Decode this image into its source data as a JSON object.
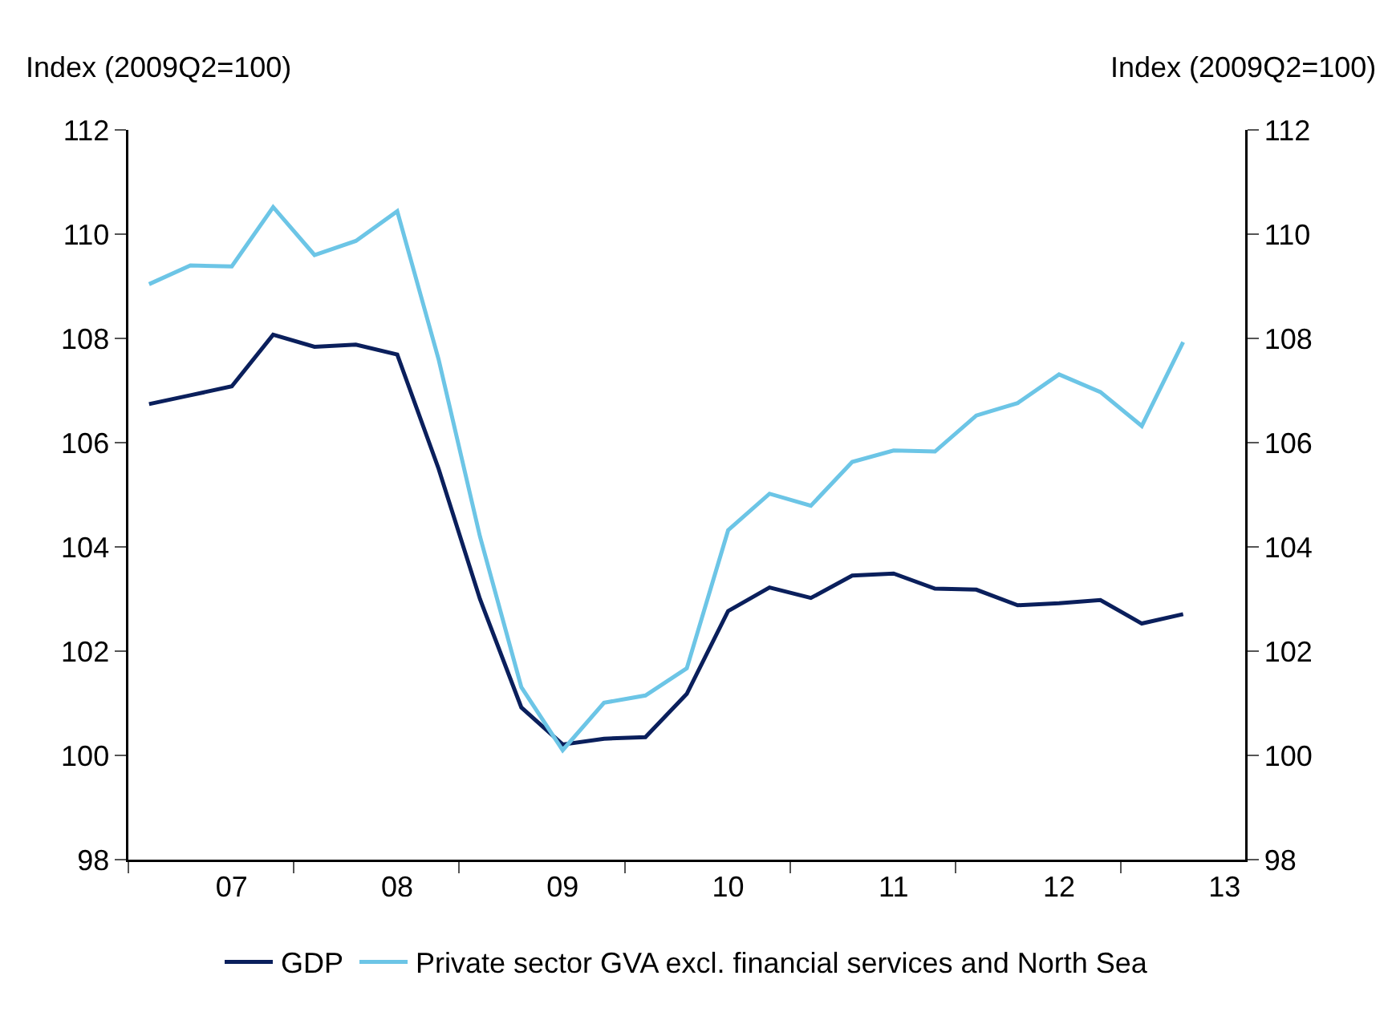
{
  "chart_data": {
    "type": "line",
    "ylabel": "Index (2009Q2=100)",
    "y2label": "Index (2009Q2=100)",
    "x": [
      2006.5,
      2006.75,
      2007,
      2007.25,
      2007.5,
      2007.75,
      2008,
      2008.25,
      2008.5,
      2008.75,
      2009,
      2009.25,
      2009.5,
      2009.75,
      2010,
      2010.25,
      2010.5,
      2010.75,
      2011,
      2011.25,
      2011.5,
      2011.75,
      2012,
      2012.25,
      2012.5,
      2012.75
    ],
    "series": [
      {
        "name": "GDP",
        "color": "#0a1f5c",
        "values": [
          106.74,
          106.91,
          107.08,
          108.07,
          107.84,
          107.88,
          107.69,
          105.5,
          103.0,
          100.92,
          100.21,
          100.32,
          100.35,
          101.18,
          102.77,
          103.22,
          103.02,
          103.45,
          103.49,
          103.2,
          103.18,
          102.88,
          102.92,
          102.98,
          102.53,
          102.71
        ]
      },
      {
        "name": "Private sector GVA excl. financial services and North Sea",
        "color": "#6cc5e6",
        "values": [
          109.04,
          109.4,
          109.38,
          110.52,
          109.6,
          109.87,
          110.44,
          107.6,
          104.2,
          101.31,
          100.1,
          101.01,
          101.15,
          101.67,
          104.32,
          105.02,
          104.79,
          105.63,
          105.85,
          105.83,
          106.52,
          106.76,
          107.31,
          106.97,
          106.32,
          107.93
        ]
      }
    ],
    "xlim": [
      2006.375,
      2013.125
    ],
    "xticks": [
      {
        "value": 2006.375,
        "label": null
      },
      {
        "value": 2007.375,
        "label": null
      },
      {
        "value": 2008.375,
        "label": null
      },
      {
        "value": 2009.375,
        "label": null
      },
      {
        "value": 2010.375,
        "label": null
      },
      {
        "value": 2011.375,
        "label": null
      },
      {
        "value": 2012.375,
        "label": null
      },
      {
        "value": 2007,
        "label": "07"
      },
      {
        "value": 2008,
        "label": "08"
      },
      {
        "value": 2009,
        "label": "09"
      },
      {
        "value": 2010,
        "label": "10"
      },
      {
        "value": 2011,
        "label": "11"
      },
      {
        "value": 2012,
        "label": "12"
      },
      {
        "value": 2013,
        "label": "13"
      }
    ],
    "ylim": [
      98,
      112
    ],
    "yticks": [
      98,
      100,
      102,
      104,
      106,
      108,
      110,
      112
    ],
    "y2lim": [
      98,
      112
    ],
    "y2ticks": [
      98,
      100,
      102,
      104,
      106,
      108,
      110,
      112
    ],
    "grid": false,
    "legend": "bottom",
    "marker": "none",
    "line_style": "solid"
  }
}
